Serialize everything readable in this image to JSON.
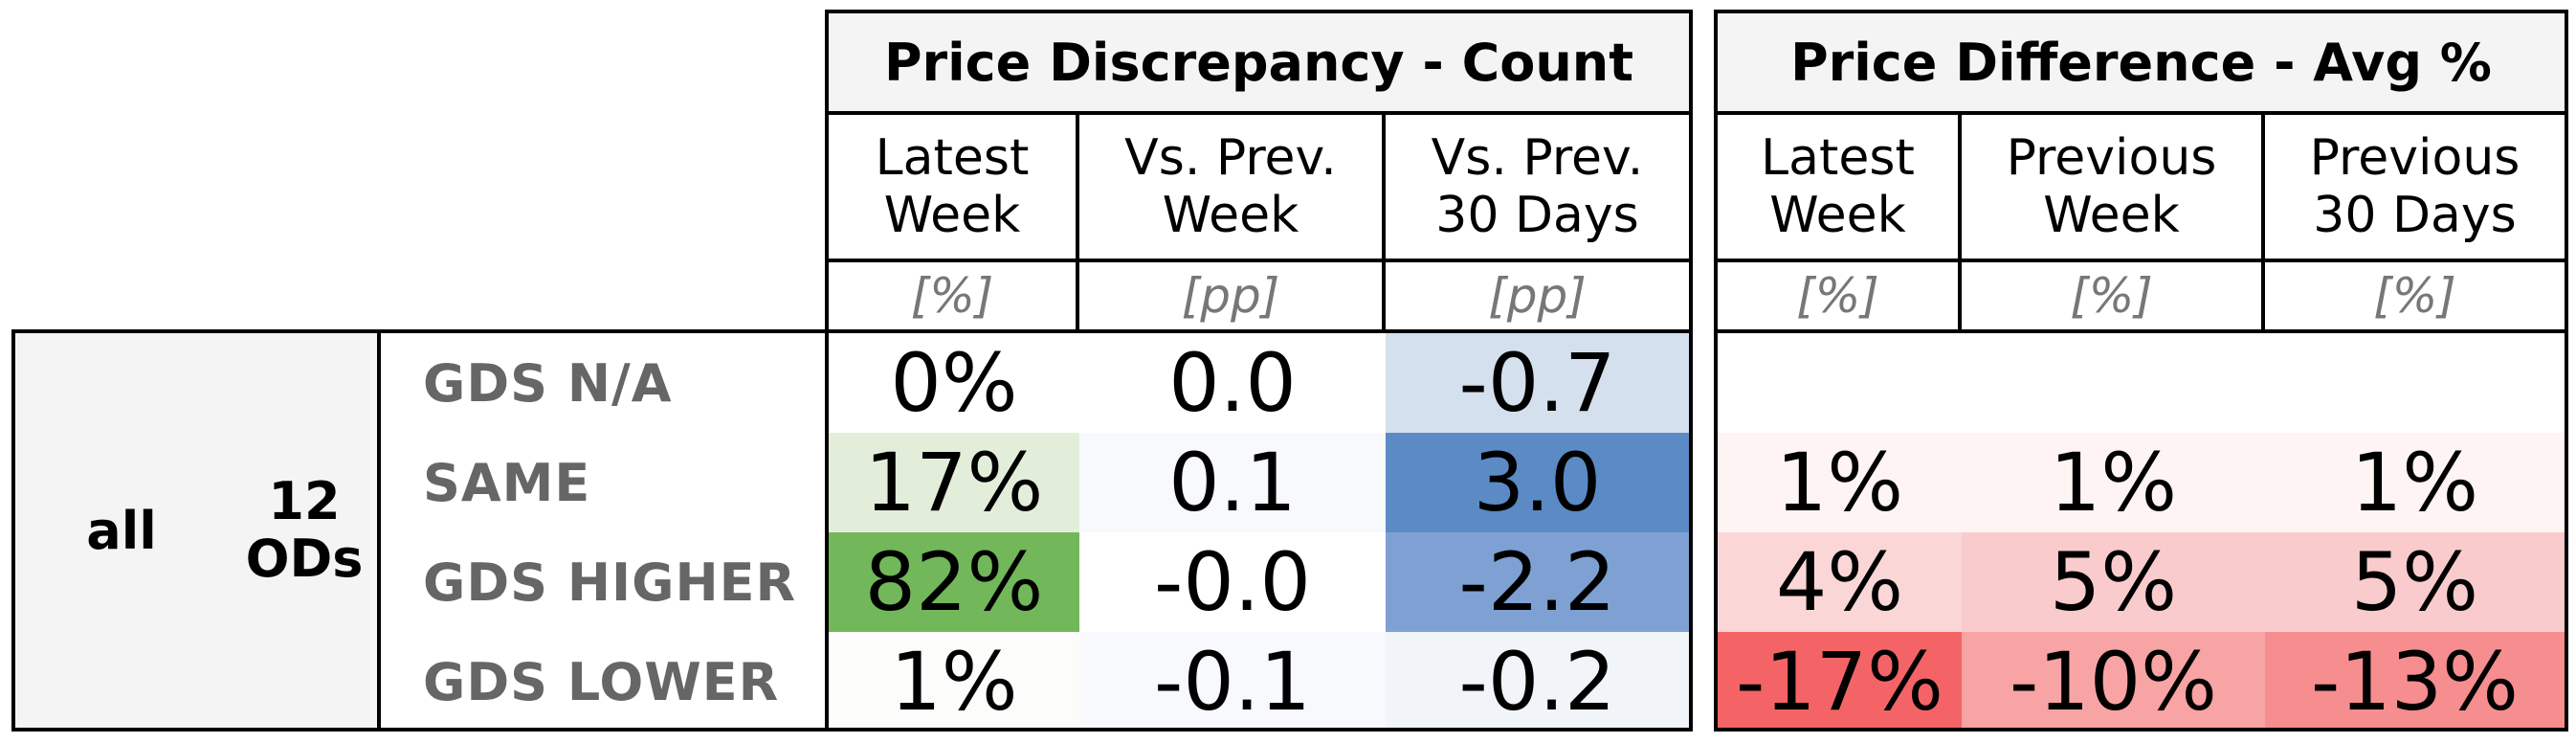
{
  "chart_data": {
    "type": "table",
    "groups": [
      {
        "title": "Price Discrepancy - Count",
        "columns": [
          {
            "label": "Latest\nWeek",
            "unit": "[%]"
          },
          {
            "label": "Vs. Prev.\nWeek",
            "unit": "[pp]"
          },
          {
            "label": "Vs. Prev.\n30 Days",
            "unit": "[pp]"
          }
        ],
        "rows": [
          [
            "0%",
            "0.0",
            "-0.7"
          ],
          [
            "17%",
            "0.1",
            "3.0"
          ],
          [
            "82%",
            "-0.0",
            "-2.2"
          ],
          [
            "1%",
            "-0.1",
            "-0.2"
          ]
        ],
        "colors": [
          [
            "#ffffff",
            "#ffffff",
            "#d5e0ef"
          ],
          [
            "#e2eed9",
            "#f7f9fc",
            "#5b8ac5"
          ],
          [
            "#72b75a",
            "#ffffff",
            "#7ea0d2"
          ],
          [
            "#fcfdfb",
            "#f7f9fc",
            "#f1f4f9"
          ]
        ]
      },
      {
        "title": "Price Difference - Avg %",
        "columns": [
          {
            "label": "Latest\nWeek",
            "unit": "[%]"
          },
          {
            "label": "Previous\nWeek",
            "unit": "[%]"
          },
          {
            "label": "Previous\n30 Days",
            "unit": "[%]"
          }
        ],
        "rows": [
          [
            "",
            "",
            ""
          ],
          [
            "1%",
            "1%",
            "1%"
          ],
          [
            "4%",
            "5%",
            "5%"
          ],
          [
            "-17%",
            "-10%",
            "-13%"
          ]
        ],
        "colors": [
          [
            "#ffffff",
            "#ffffff",
            "#ffffff"
          ],
          [
            "#fef4f4",
            "#fef4f4",
            "#fef4f4"
          ],
          [
            "#fbd6d7",
            "#facbcc",
            "#facbcc"
          ],
          [
            "#f46466",
            "#f8a3a4",
            "#f68d8f"
          ]
        ]
      }
    ],
    "row_labels": [
      "GDS N/A",
      "SAME",
      "GDS HIGHER",
      "GDS LOWER"
    ],
    "stub": {
      "level1": "all",
      "level2": "12\nODs"
    }
  }
}
